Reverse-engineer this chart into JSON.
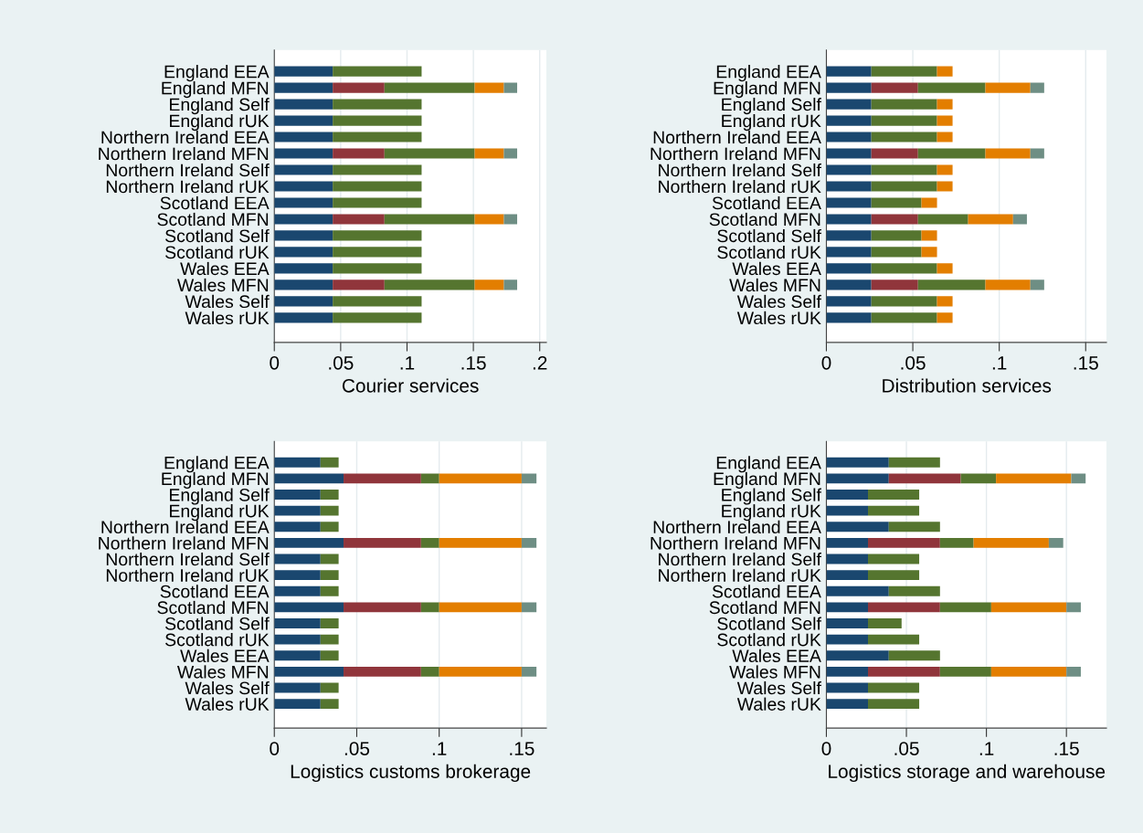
{
  "chart_data": [
    {
      "type": "bar",
      "orientation": "horizontal",
      "stacked": true,
      "xlabel": "Courier services",
      "grid": "x",
      "categories": [
        "England EEA",
        "England MFN",
        "England Self",
        "England rUK",
        "Northern Ireland EEA",
        "Northern Ireland MFN",
        "Northern Ireland Self",
        "Northern Ireland rUK",
        "Scotland EEA",
        "Scotland MFN",
        "Scotland Self",
        "Scotland rUK",
        "Wales EEA",
        "Wales MFN",
        "Wales Self",
        "Wales rUK"
      ],
      "xlim": [
        0,
        0.205
      ],
      "xticks": [
        0,
        {
          "value": 0.05,
          "label": ".05"
        },
        {
          "value": 0.1,
          "label": ".1"
        },
        {
          "value": 0.15,
          "label": ".15"
        },
        {
          "value": 0.2,
          "label": ".2"
        }
      ],
      "series": [
        {
          "color": "#1a476f",
          "values": [
            0.044,
            0.044,
            0.044,
            0.044,
            0.044,
            0.044,
            0.044,
            0.044,
            0.044,
            0.044,
            0.044,
            0.044,
            0.044,
            0.044,
            0.044,
            0.044
          ]
        },
        {
          "color": "#90353b",
          "values": [
            null,
            0.039,
            null,
            null,
            null,
            0.039,
            null,
            null,
            null,
            0.039,
            null,
            null,
            null,
            0.039,
            null,
            null
          ]
        },
        {
          "color": "#55752f",
          "values": [
            0.067,
            0.068,
            0.067,
            0.067,
            0.067,
            0.068,
            0.067,
            0.067,
            0.067,
            0.068,
            0.067,
            0.067,
            0.067,
            0.068,
            0.067,
            0.067
          ]
        },
        {
          "color": "#e37e00",
          "values": [
            null,
            0.022,
            null,
            null,
            null,
            0.022,
            null,
            null,
            null,
            0.022,
            null,
            null,
            null,
            0.022,
            null,
            null
          ]
        },
        {
          "color": "#6e8e84",
          "values": [
            null,
            0.01,
            null,
            null,
            null,
            0.01,
            null,
            null,
            null,
            0.01,
            null,
            null,
            null,
            0.01,
            null,
            null
          ]
        }
      ]
    },
    {
      "type": "bar",
      "orientation": "horizontal",
      "stacked": true,
      "xlabel": "Distribution services",
      "grid": "x",
      "categories": [
        "England EEA",
        "England MFN",
        "England Self",
        "England rUK",
        "Northern Ireland EEA",
        "Northern Ireland MFN",
        "Northern Ireland Self",
        "Northern Ireland rUK",
        "Scotland EEA",
        "Scotland MFN",
        "Scotland Self",
        "Scotland rUK",
        "Wales EEA",
        "Wales MFN",
        "Wales Self",
        "Wales rUK"
      ],
      "xlim": [
        0,
        0.162
      ],
      "xticks": [
        0,
        {
          "value": 0.05,
          "label": ".05"
        },
        {
          "value": 0.1,
          "label": ".1"
        },
        {
          "value": 0.15,
          "label": ".15"
        }
      ],
      "series": [
        {
          "color": "#1a476f",
          "values": [
            0.026,
            0.026,
            0.026,
            0.026,
            0.026,
            0.026,
            0.026,
            0.026,
            0.026,
            0.026,
            0.026,
            0.026,
            0.026,
            0.026,
            0.026,
            0.026
          ]
        },
        {
          "color": "#90353b",
          "values": [
            null,
            0.027,
            null,
            null,
            null,
            0.027,
            null,
            null,
            null,
            0.027,
            null,
            null,
            null,
            0.027,
            null,
            null
          ]
        },
        {
          "color": "#55752f",
          "values": [
            0.038,
            0.039,
            0.038,
            0.038,
            0.038,
            0.039,
            0.038,
            0.038,
            0.029,
            0.029,
            0.029,
            0.029,
            0.038,
            0.039,
            0.038,
            0.038
          ]
        },
        {
          "color": "#e37e00",
          "values": [
            0.009,
            0.026,
            0.009,
            0.009,
            0.009,
            0.026,
            0.009,
            0.009,
            0.009,
            0.026,
            0.009,
            0.009,
            0.009,
            0.026,
            0.009,
            0.009
          ]
        },
        {
          "color": "#6e8e84",
          "values": [
            null,
            0.008,
            null,
            null,
            null,
            0.008,
            null,
            null,
            null,
            0.008,
            null,
            null,
            null,
            0.008,
            null,
            null
          ]
        }
      ]
    },
    {
      "type": "bar",
      "orientation": "horizontal",
      "stacked": true,
      "xlabel": "Logistics customs brokerage",
      "grid": "x",
      "categories": [
        "England EEA",
        "England MFN",
        "England Self",
        "England rUK",
        "Northern Ireland EEA",
        "Northern Ireland MFN",
        "Northern Ireland Self",
        "Northern Ireland rUK",
        "Scotland EEA",
        "Scotland MFN",
        "Scotland Self",
        "Scotland rUK",
        "Wales EEA",
        "Wales MFN",
        "Wales Self",
        "Wales rUK"
      ],
      "xlim": [
        0,
        0.165
      ],
      "xticks": [
        0,
        {
          "value": 0.05,
          "label": ".05"
        },
        {
          "value": 0.1,
          "label": ".1"
        },
        {
          "value": 0.15,
          "label": ".15"
        }
      ],
      "series": [
        {
          "color": "#1a476f",
          "values": [
            0.028,
            0.042,
            0.028,
            0.028,
            0.028,
            0.042,
            0.028,
            0.028,
            0.028,
            0.042,
            0.028,
            0.028,
            0.028,
            0.042,
            0.028,
            0.028
          ]
        },
        {
          "color": "#90353b",
          "values": [
            null,
            0.047,
            null,
            null,
            null,
            0.047,
            null,
            null,
            null,
            0.047,
            null,
            null,
            null,
            0.047,
            null,
            null
          ]
        },
        {
          "color": "#55752f",
          "values": [
            0.011,
            0.011,
            0.011,
            0.011,
            0.011,
            0.011,
            0.011,
            0.011,
            0.011,
            0.011,
            0.011,
            0.011,
            0.011,
            0.011,
            0.011,
            0.011
          ]
        },
        {
          "color": "#e37e00",
          "values": [
            null,
            0.05,
            null,
            null,
            null,
            0.05,
            null,
            null,
            null,
            0.05,
            null,
            null,
            null,
            0.05,
            null,
            null
          ]
        },
        {
          "color": "#6e8e84",
          "values": [
            null,
            0.009,
            null,
            null,
            null,
            0.009,
            null,
            null,
            null,
            0.009,
            null,
            null,
            null,
            0.009,
            null,
            null
          ]
        }
      ]
    },
    {
      "type": "bar",
      "orientation": "horizontal",
      "stacked": true,
      "xlabel": "Logistics storage and warehouse",
      "grid": "x",
      "categories": [
        "England EEA",
        "England MFN",
        "England Self",
        "England rUK",
        "Northern Ireland EEA",
        "Northern Ireland MFN",
        "Northern Ireland Self",
        "Northern Ireland rUK",
        "Scotland EEA",
        "Scotland MFN",
        "Scotland Self",
        "Scotland rUK",
        "Wales EEA",
        "Wales MFN",
        "Wales Self",
        "Wales rUK"
      ],
      "xlim": [
        0,
        0.175
      ],
      "xticks": [
        0,
        {
          "value": 0.05,
          "label": ".05"
        },
        {
          "value": 0.1,
          "label": ".1"
        },
        {
          "value": 0.15,
          "label": ".15"
        }
      ],
      "series": [
        {
          "color": "#1a476f",
          "values": [
            0.039,
            0.039,
            0.026,
            0.026,
            0.039,
            0.026,
            0.026,
            0.026,
            0.039,
            0.026,
            0.026,
            0.026,
            0.039,
            0.026,
            0.026,
            0.026
          ]
        },
        {
          "color": "#90353b",
          "values": [
            null,
            0.045,
            null,
            null,
            null,
            0.045,
            null,
            null,
            null,
            0.045,
            null,
            null,
            null,
            0.045,
            null,
            null
          ]
        },
        {
          "color": "#55752f",
          "values": [
            0.032,
            0.022,
            0.032,
            0.032,
            0.032,
            0.021,
            0.032,
            0.032,
            0.032,
            0.032,
            0.021,
            0.032,
            0.032,
            0.032,
            0.032,
            0.032
          ]
        },
        {
          "color": "#e37e00",
          "values": [
            null,
            0.047,
            null,
            null,
            null,
            0.047,
            null,
            null,
            null,
            0.047,
            null,
            null,
            null,
            0.047,
            null,
            null
          ]
        },
        {
          "color": "#6e8e84",
          "values": [
            null,
            0.009,
            null,
            null,
            null,
            0.009,
            null,
            null,
            null,
            0.009,
            null,
            null,
            null,
            0.009,
            null,
            null
          ]
        }
      ]
    }
  ]
}
